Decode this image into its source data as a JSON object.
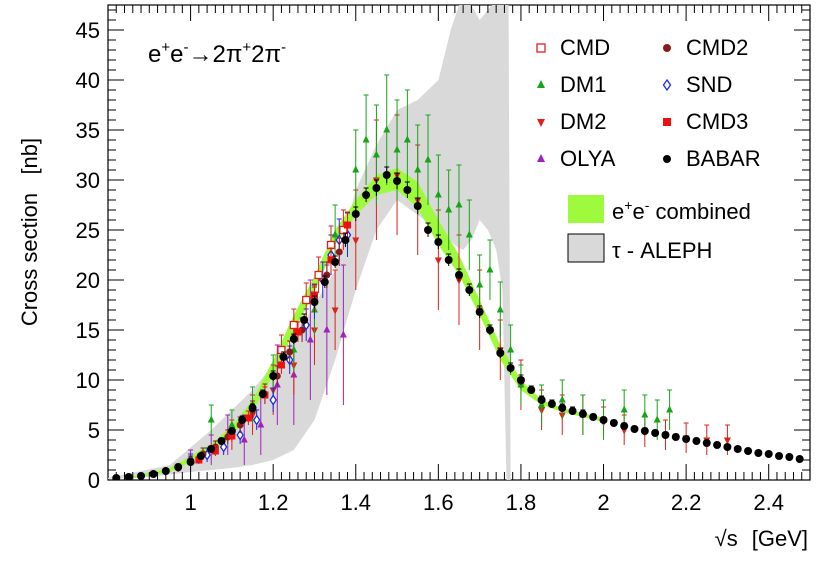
{
  "chart_data": {
    "type": "scatter",
    "title": "",
    "process_label": {
      "base1": "e",
      "sup1": "+",
      "base2": "e",
      "sup2": "-",
      "arrow": "→",
      "base3": "2π",
      "sup3": "+",
      "base4": "2π",
      "sup4": "-"
    },
    "xlabel": {
      "sqrt": "√",
      "var": "s",
      "unit": "[GeV]"
    },
    "ylabel": "Cross section   [nb]",
    "xlim": [
      0.8,
      2.5
    ],
    "ylim": [
      0,
      47.5
    ],
    "x_ticks": [
      1,
      1.2,
      1.4,
      1.6,
      1.8,
      2,
      2.2,
      2.4
    ],
    "y_ticks": [
      0,
      5,
      10,
      15,
      20,
      25,
      30,
      35,
      40,
      45
    ],
    "legend": [
      {
        "name": "CMD",
        "marker": "open-square",
        "color": "#e0201b"
      },
      {
        "name": "CMD2",
        "marker": "circle",
        "color": "#8b1a1a"
      },
      {
        "name": "DM1",
        "marker": "triangle-up",
        "color": "#16a516"
      },
      {
        "name": "SND",
        "marker": "open-diamond",
        "color": "#1a2be0"
      },
      {
        "name": "DM2",
        "marker": "triangle-down",
        "color": "#e0201b"
      },
      {
        "name": "CMD3",
        "marker": "square",
        "color": "#ee1010"
      },
      {
        "name": "OLYA",
        "marker": "triangle-up",
        "color": "#a020c0"
      },
      {
        "name": "BABAR",
        "marker": "circle",
        "color": "#000000"
      }
    ],
    "band_legend": [
      {
        "base": "e",
        "sup1": "+",
        "mid": "e",
        "sup2": "-",
        "rest": " combined",
        "color": "#9dfa3c"
      },
      {
        "label": "τ - ALEPH",
        "color": "#d9d9d9"
      }
    ],
    "combined_band": {
      "x": [
        0.85,
        0.95,
        1.0,
        1.05,
        1.1,
        1.15,
        1.2,
        1.25,
        1.3,
        1.35,
        1.4,
        1.45,
        1.5,
        1.55,
        1.6,
        1.65,
        1.7,
        1.75,
        1.8,
        1.85,
        1.9,
        2.0
      ],
      "low": [
        0.1,
        0.8,
        1.8,
        2.8,
        4.5,
        6.8,
        10.5,
        14.8,
        18.8,
        23.5,
        26.5,
        28.5,
        29.0,
        27.2,
        23.5,
        20.5,
        16.5,
        12.0,
        9.0,
        7.5,
        6.8,
        5.8
      ],
      "high": [
        0.3,
        1.2,
        2.4,
        3.6,
        5.4,
        8.0,
        12.0,
        16.5,
        20.4,
        25.0,
        28.0,
        30.5,
        31.2,
        29.8,
        26.0,
        22.5,
        18.0,
        13.5,
        10.0,
        8.0,
        7.2,
        6.2
      ]
    },
    "aleph_band": {
      "upper": [
        [
          0.8,
          0.2
        ],
        [
          0.95,
          1.5
        ],
        [
          1.05,
          5.0
        ],
        [
          1.15,
          9.0
        ],
        [
          1.25,
          14.0
        ],
        [
          1.35,
          21.0
        ],
        [
          1.4,
          29.0
        ],
        [
          1.45,
          33.5
        ],
        [
          1.5,
          37.0
        ],
        [
          1.55,
          38.0
        ],
        [
          1.6,
          40.0
        ],
        [
          1.63,
          45.0
        ],
        [
          1.65,
          47.5
        ],
        [
          1.68,
          47.5
        ],
        [
          1.7,
          46.0
        ],
        [
          1.73,
          47.5
        ],
        [
          1.77,
          47.5
        ],
        [
          1.775,
          0.0
        ]
      ],
      "lower": [
        [
          1.765,
          0.0
        ],
        [
          1.755,
          19.0
        ],
        [
          1.74,
          23.0
        ],
        [
          1.72,
          25.0
        ],
        [
          1.7,
          26.0
        ],
        [
          1.68,
          24.0
        ],
        [
          1.66,
          23.0
        ],
        [
          1.64,
          23.5
        ],
        [
          1.6,
          25.0
        ],
        [
          1.5,
          28.0
        ],
        [
          1.45,
          25.0
        ],
        [
          1.4,
          19.0
        ],
        [
          1.35,
          12.0
        ],
        [
          1.3,
          6.0
        ],
        [
          1.25,
          3.0
        ],
        [
          1.2,
          2.0
        ],
        [
          1.15,
          1.5
        ],
        [
          1.1,
          1.2
        ],
        [
          1.0,
          0.8
        ],
        [
          0.9,
          0.3
        ],
        [
          0.8,
          0.1
        ]
      ]
    },
    "series": [
      {
        "name": "BABAR",
        "marker": "circle",
        "color": "#000000",
        "x": [
          0.82,
          0.85,
          0.88,
          0.91,
          0.94,
          0.97,
          1.0,
          1.025,
          1.05,
          1.075,
          1.1,
          1.125,
          1.15,
          1.175,
          1.2,
          1.225,
          1.25,
          1.275,
          1.3,
          1.325,
          1.35,
          1.375,
          1.4,
          1.425,
          1.45,
          1.475,
          1.5,
          1.525,
          1.55,
          1.575,
          1.6,
          1.625,
          1.65,
          1.675,
          1.7,
          1.725,
          1.75,
          1.775,
          1.8,
          1.825,
          1.85,
          1.875,
          1.9,
          1.925,
          1.95,
          1.975,
          2.0,
          2.025,
          2.05,
          2.075,
          2.1,
          2.125,
          2.15,
          2.175,
          2.2,
          2.225,
          2.25,
          2.275,
          2.3,
          2.325,
          2.35,
          2.375,
          2.4,
          2.425,
          2.45,
          2.475
        ],
        "y": [
          0.2,
          0.3,
          0.4,
          0.6,
          0.9,
          1.3,
          1.8,
          2.4,
          3.1,
          3.9,
          4.9,
          6.0,
          7.2,
          8.6,
          10.4,
          12.3,
          14.1,
          16.0,
          17.8,
          19.8,
          21.8,
          24.0,
          26.6,
          28.5,
          29.2,
          30.5,
          29.9,
          29.0,
          27.4,
          25.0,
          23.8,
          22.0,
          20.5,
          19.0,
          16.8,
          15.0,
          12.7,
          11.2,
          10.0,
          9.0,
          8.0,
          7.6,
          7.2,
          6.9,
          6.6,
          6.3,
          6.0,
          5.7,
          5.4,
          5.1,
          4.9,
          4.7,
          4.5,
          4.3,
          4.1,
          3.9,
          3.7,
          3.5,
          3.3,
          3.1,
          2.9,
          2.7,
          2.6,
          2.4,
          2.3,
          2.1
        ],
        "err": [
          0.1,
          0.1,
          0.1,
          0.1,
          0.1,
          0.2,
          0.2,
          0.2,
          0.3,
          0.3,
          0.3,
          0.4,
          0.4,
          0.4,
          0.5,
          0.5,
          0.5,
          0.6,
          0.6,
          0.6,
          0.6,
          0.7,
          0.7,
          0.7,
          0.8,
          0.8,
          0.8,
          0.8,
          0.8,
          0.7,
          0.7,
          0.6,
          0.6,
          0.6,
          0.6,
          0.5,
          0.5,
          0.5,
          0.5,
          0.4,
          0.4,
          0.4,
          0.4,
          0.4,
          0.4,
          0.3,
          0.3,
          0.3,
          0.3,
          0.3,
          0.3,
          0.3,
          0.3,
          0.3,
          0.3,
          0.3,
          0.2,
          0.2,
          0.2,
          0.2,
          0.2,
          0.2,
          0.2,
          0.2,
          0.2,
          0.2
        ]
      },
      {
        "name": "CMD2",
        "marker": "circle",
        "color": "#8b1a1a",
        "x": [
          0.97,
          1.0,
          1.03,
          1.06,
          1.09,
          1.12,
          1.15,
          1.18,
          1.21,
          1.24,
          1.27,
          1.3,
          1.33,
          1.36
        ],
        "y": [
          1.2,
          1.9,
          2.6,
          3.3,
          4.3,
          5.5,
          7.0,
          8.6,
          10.4,
          12.8,
          15.0,
          18.0,
          20.5,
          22.8
        ],
        "err": [
          0.4,
          0.5,
          0.6,
          0.6,
          0.7,
          0.8,
          0.9,
          1.0,
          1.0,
          1.1,
          1.2,
          1.3,
          1.3,
          1.4
        ]
      },
      {
        "name": "CMD",
        "marker": "open-square",
        "color": "#e0201b",
        "x": [
          1.22,
          1.25,
          1.28,
          1.31,
          1.34,
          1.37
        ],
        "y": [
          13.0,
          15.5,
          18.0,
          20.5,
          23.5,
          25.0
        ],
        "err": [
          1.5,
          1.6,
          1.7,
          1.8,
          1.9,
          2.0
        ]
      },
      {
        "name": "SND",
        "marker": "open-diamond",
        "color": "#1a2be0",
        "x": [
          1.0,
          1.04,
          1.08,
          1.12,
          1.16,
          1.2,
          1.24,
          1.28,
          1.3,
          1.32,
          1.34,
          1.36,
          1.38
        ],
        "y": [
          2.0,
          2.5,
          3.3,
          4.5,
          6.0,
          8.0,
          12.0,
          15.5,
          17.8,
          20.0,
          22.5,
          24.0,
          24.5
        ],
        "err": [
          0.6,
          0.7,
          0.8,
          0.9,
          1.0,
          1.2,
          1.4,
          1.6,
          1.7,
          1.8,
          2.0,
          2.1,
          2.2
        ]
      },
      {
        "name": "DM1",
        "marker": "triangle-up",
        "color": "#16a516",
        "x": [
          1.05,
          1.1,
          1.15,
          1.2,
          1.25,
          1.3,
          1.35,
          1.4,
          1.425,
          1.45,
          1.475,
          1.5,
          1.525,
          1.55,
          1.575,
          1.6,
          1.625,
          1.65,
          1.675,
          1.7,
          1.725,
          1.75,
          1.775,
          1.8,
          1.85,
          1.9,
          1.95,
          2.0,
          2.05,
          2.1,
          2.13,
          2.16
        ],
        "y": [
          6.0,
          5.5,
          7.5,
          10.5,
          13.0,
          17.0,
          24.5,
          31.0,
          34.0,
          32.5,
          35.0,
          33.0,
          34.0,
          31.0,
          32.0,
          28.5,
          27.0,
          27.5,
          24.5,
          19.5,
          21.0,
          17.0,
          13.0,
          9.5,
          7.5,
          8.0,
          6.5,
          6.0,
          7.0,
          6.5,
          6.0,
          7.0
        ],
        "err": [
          1.5,
          1.5,
          1.8,
          2.0,
          2.2,
          2.5,
          3.0,
          4.0,
          4.5,
          5.0,
          5.5,
          5.0,
          5.0,
          4.5,
          4.5,
          4.0,
          4.0,
          4.0,
          3.5,
          3.0,
          3.0,
          2.8,
          2.5,
          2.0,
          2.0,
          2.0,
          2.0,
          2.0,
          2.0,
          2.0,
          2.0,
          2.0
        ]
      },
      {
        "name": "DM2",
        "marker": "triangle-down",
        "color": "#e0201b",
        "x": [
          1.1,
          1.15,
          1.2,
          1.25,
          1.3,
          1.35,
          1.4,
          1.45,
          1.5,
          1.55,
          1.6,
          1.65,
          1.7,
          1.75,
          1.8,
          1.85,
          1.9,
          1.95,
          2.0,
          2.05,
          2.1,
          2.15,
          2.2,
          2.25,
          2.3
        ],
        "y": [
          4.5,
          6.5,
          9.0,
          11.5,
          15.0,
          17.0,
          24.0,
          30.0,
          30.5,
          28.0,
          22.0,
          20.0,
          17.0,
          13.0,
          9.5,
          7.0,
          6.5,
          6.5,
          5.8,
          5.0,
          4.8,
          4.5,
          4.2,
          4.0,
          4.0
        ],
        "err": [
          1.5,
          2.0,
          2.5,
          3.0,
          3.5,
          4.0,
          5.0,
          6.0,
          6.0,
          5.5,
          5.0,
          4.5,
          4.0,
          3.0,
          2.5,
          2.0,
          2.0,
          2.0,
          1.5,
          1.5,
          1.5,
          1.5,
          1.5,
          1.5,
          1.5
        ]
      },
      {
        "name": "CMD3",
        "marker": "square",
        "color": "#ee1010",
        "x": [
          1.02,
          1.06,
          1.1,
          1.14,
          1.18,
          1.22,
          1.26,
          1.3,
          1.34,
          1.38
        ],
        "y": [
          2.0,
          2.9,
          4.4,
          6.2,
          8.5,
          11.5,
          14.8,
          18.5,
          22.0,
          25.5
        ],
        "err": [
          0.4,
          0.5,
          0.6,
          0.7,
          0.8,
          0.9,
          1.0,
          1.1,
          1.2,
          1.3
        ]
      },
      {
        "name": "OLYA",
        "marker": "triangle-up",
        "color": "#a020c0",
        "x": [
          1.0,
          1.05,
          1.09,
          1.13,
          1.17,
          1.21,
          1.25,
          1.29,
          1.33,
          1.37
        ],
        "y": [
          2.0,
          3.0,
          4.5,
          4.0,
          5.5,
          9.5,
          10.5,
          14.0,
          15.0,
          14.5
        ],
        "err": [
          1.0,
          1.5,
          2.0,
          2.5,
          3.0,
          4.0,
          5.0,
          6.0,
          6.5,
          7.0
        ]
      }
    ]
  }
}
